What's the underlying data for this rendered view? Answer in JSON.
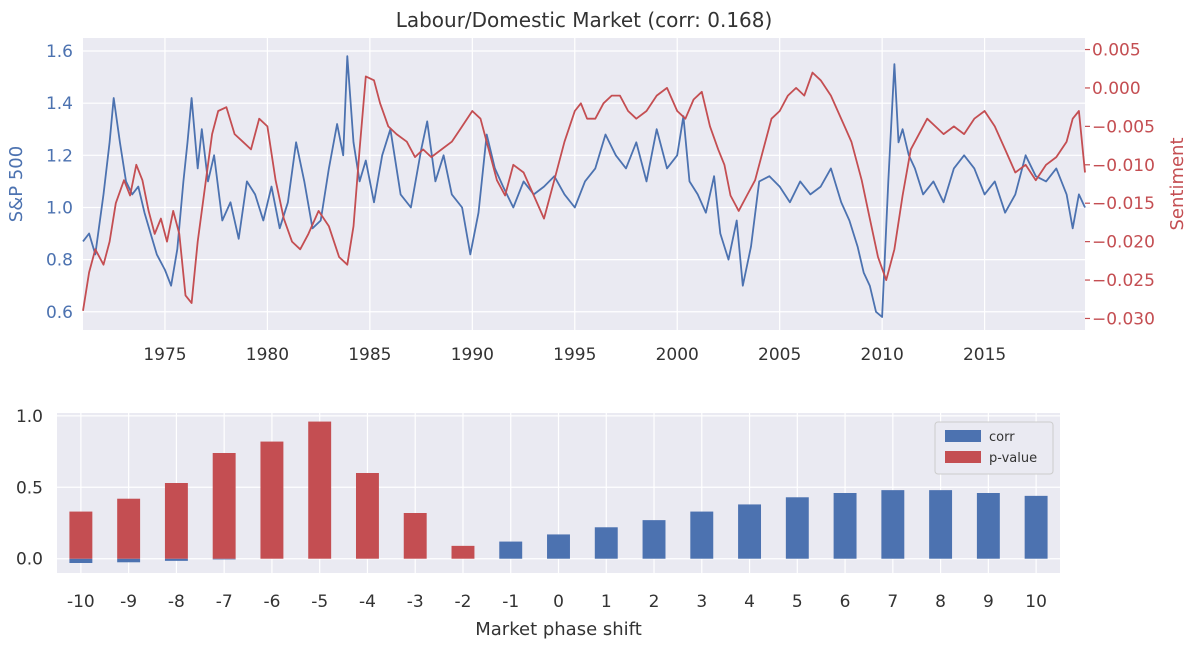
{
  "colors": {
    "background": "#ffffff",
    "panel": "#eaeaf2",
    "grid": "#ffffff",
    "blue": "#4c72b0",
    "red": "#c44e52",
    "text": "#333333"
  },
  "chart_data": [
    {
      "type": "line",
      "title": "Labour/Domestic Market (corr: 0.168)",
      "xlabel": "",
      "ylabel": "S&P 500",
      "y2label": "Sentiment",
      "x_range": [
        1971.0,
        2019.9
      ],
      "ylim": [
        0.53,
        1.65
      ],
      "y2lim": [
        -0.0315,
        0.0065
      ],
      "x_ticks": [
        1975,
        1980,
        1985,
        1990,
        1995,
        2000,
        2005,
        2010,
        2015
      ],
      "y_ticks": [
        0.6,
        0.8,
        1.0,
        1.2,
        1.4,
        1.6
      ],
      "y_tick_labels": [
        "0.6",
        "0.8",
        "1.0",
        "1.2",
        "1.4",
        "1.6"
      ],
      "y2_ticks": [
        -0.03,
        -0.025,
        -0.02,
        -0.015,
        -0.01,
        -0.005,
        0.0,
        0.005
      ],
      "y2_tick_labels": [
        "−0.030",
        "−0.025",
        "−0.020",
        "−0.015",
        "−0.010",
        "−0.005",
        "0.000",
        "0.005"
      ],
      "grid": true,
      "series": [
        {
          "axis": "left",
          "color": "#4c72b0",
          "x": [
            1971.0,
            1971.3,
            1971.6,
            1972.0,
            1972.3,
            1972.5,
            1972.8,
            1973.1,
            1973.4,
            1973.7,
            1974.0,
            1974.3,
            1974.6,
            1975.0,
            1975.3,
            1975.6,
            1975.9,
            1976.1,
            1976.3,
            1976.6,
            1976.8,
            1977.1,
            1977.4,
            1977.8,
            1978.2,
            1978.6,
            1979.0,
            1979.4,
            1979.8,
            1980.2,
            1980.6,
            1981.0,
            1981.4,
            1981.8,
            1982.2,
            1982.6,
            1983.0,
            1983.4,
            1983.7,
            1983.9,
            1984.2,
            1984.5,
            1984.8,
            1985.2,
            1985.6,
            1986.0,
            1986.5,
            1987.0,
            1987.5,
            1987.8,
            1988.2,
            1988.6,
            1989.0,
            1989.5,
            1989.9,
            1990.3,
            1990.7,
            1991.1,
            1991.5,
            1992.0,
            1992.5,
            1993.0,
            1993.5,
            1994.0,
            1994.5,
            1995.0,
            1995.5,
            1996.0,
            1996.5,
            1997.0,
            1997.5,
            1998.0,
            1998.5,
            1999.0,
            1999.5,
            2000.0,
            2000.3,
            2000.6,
            2001.0,
            2001.4,
            2001.8,
            2002.1,
            2002.5,
            2002.9,
            2003.2,
            2003.6,
            2004.0,
            2004.5,
            2005.0,
            2005.5,
            2006.0,
            2006.5,
            2007.0,
            2007.5,
            2008.0,
            2008.4,
            2008.8,
            2009.1,
            2009.4,
            2009.7,
            2010.0,
            2010.3,
            2010.6,
            2010.8,
            2011.0,
            2011.3,
            2011.6,
            2012.0,
            2012.5,
            2013.0,
            2013.5,
            2014.0,
            2014.5,
            2015.0,
            2015.5,
            2016.0,
            2016.5,
            2017.0,
            2017.5,
            2018.0,
            2018.5,
            2019.0,
            2019.3,
            2019.6,
            2019.9
          ],
          "y": [
            0.87,
            0.9,
            0.82,
            1.05,
            1.25,
            1.42,
            1.25,
            1.1,
            1.05,
            1.08,
            0.98,
            0.9,
            0.82,
            0.76,
            0.7,
            0.84,
            1.1,
            1.25,
            1.42,
            1.15,
            1.3,
            1.1,
            1.2,
            0.95,
            1.02,
            0.88,
            1.1,
            1.05,
            0.95,
            1.08,
            0.92,
            1.02,
            1.25,
            1.1,
            0.92,
            0.95,
            1.15,
            1.32,
            1.2,
            1.58,
            1.25,
            1.1,
            1.18,
            1.02,
            1.2,
            1.3,
            1.05,
            1.0,
            1.22,
            1.33,
            1.1,
            1.2,
            1.05,
            1.0,
            0.82,
            0.98,
            1.28,
            1.15,
            1.08,
            1.0,
            1.1,
            1.05,
            1.08,
            1.12,
            1.05,
            1.0,
            1.1,
            1.15,
            1.28,
            1.2,
            1.15,
            1.25,
            1.1,
            1.3,
            1.15,
            1.2,
            1.35,
            1.1,
            1.05,
            0.98,
            1.12,
            0.9,
            0.8,
            0.95,
            0.7,
            0.85,
            1.1,
            1.12,
            1.08,
            1.02,
            1.1,
            1.05,
            1.08,
            1.15,
            1.02,
            0.95,
            0.85,
            0.75,
            0.7,
            0.6,
            0.58,
            1.1,
            1.55,
            1.25,
            1.3,
            1.2,
            1.15,
            1.05,
            1.1,
            1.02,
            1.15,
            1.2,
            1.15,
            1.05,
            1.1,
            0.98,
            1.05,
            1.2,
            1.12,
            1.1,
            1.15,
            1.05,
            0.92,
            1.05,
            1.0
          ]
        },
        {
          "axis": "right",
          "color": "#c44e52",
          "x": [
            1971.0,
            1971.3,
            1971.6,
            1972.0,
            1972.3,
            1972.6,
            1973.0,
            1973.3,
            1973.6,
            1973.9,
            1974.2,
            1974.5,
            1974.8,
            1975.1,
            1975.4,
            1975.7,
            1976.0,
            1976.3,
            1976.6,
            1977.0,
            1977.3,
            1977.6,
            1978.0,
            1978.4,
            1978.8,
            1979.2,
            1979.6,
            1980.0,
            1980.4,
            1980.8,
            1981.2,
            1981.6,
            1982.0,
            1982.5,
            1983.0,
            1983.5,
            1983.9,
            1984.2,
            1984.5,
            1984.8,
            1985.2,
            1985.5,
            1985.9,
            1986.3,
            1986.8,
            1987.2,
            1987.6,
            1988.0,
            1988.5,
            1989.0,
            1989.5,
            1990.0,
            1990.4,
            1990.8,
            1991.2,
            1991.6,
            1992.0,
            1992.5,
            1993.0,
            1993.5,
            1994.0,
            1994.5,
            1995.0,
            1995.3,
            1995.6,
            1996.0,
            1996.4,
            1996.8,
            1997.2,
            1997.6,
            1998.0,
            1998.5,
            1999.0,
            1999.5,
            2000.0,
            2000.4,
            2000.8,
            2001.2,
            2001.6,
            2002.0,
            2002.3,
            2002.6,
            2003.0,
            2003.4,
            2003.8,
            2004.2,
            2004.6,
            2005.0,
            2005.4,
            2005.8,
            2006.2,
            2006.6,
            2007.0,
            2007.5,
            2008.0,
            2008.5,
            2009.0,
            2009.4,
            2009.8,
            2010.2,
            2010.6,
            2011.0,
            2011.4,
            2011.8,
            2012.2,
            2012.6,
            2013.0,
            2013.5,
            2014.0,
            2014.5,
            2015.0,
            2015.5,
            2016.0,
            2016.5,
            2017.0,
            2017.5,
            2018.0,
            2018.5,
            2019.0,
            2019.3,
            2019.6,
            2019.9
          ],
          "y": [
            -0.029,
            -0.024,
            -0.021,
            -0.023,
            -0.02,
            -0.015,
            -0.012,
            -0.014,
            -0.01,
            -0.012,
            -0.016,
            -0.019,
            -0.017,
            -0.02,
            -0.016,
            -0.019,
            -0.027,
            -0.028,
            -0.02,
            -0.012,
            -0.006,
            -0.003,
            -0.0025,
            -0.006,
            -0.007,
            -0.008,
            -0.004,
            -0.005,
            -0.012,
            -0.017,
            -0.02,
            -0.021,
            -0.019,
            -0.016,
            -0.018,
            -0.022,
            -0.023,
            -0.018,
            -0.008,
            0.0015,
            0.001,
            -0.002,
            -0.005,
            -0.006,
            -0.007,
            -0.009,
            -0.008,
            -0.009,
            -0.008,
            -0.007,
            -0.005,
            -0.003,
            -0.004,
            -0.008,
            -0.012,
            -0.014,
            -0.01,
            -0.011,
            -0.014,
            -0.017,
            -0.012,
            -0.007,
            -0.003,
            -0.002,
            -0.004,
            -0.004,
            -0.002,
            -0.001,
            -0.001,
            -0.003,
            -0.004,
            -0.003,
            -0.001,
            0.0,
            -0.003,
            -0.004,
            -0.0015,
            -0.0005,
            -0.005,
            -0.008,
            -0.01,
            -0.014,
            -0.016,
            -0.014,
            -0.012,
            -0.008,
            -0.004,
            -0.003,
            -0.001,
            0.0,
            -0.001,
            0.002,
            0.001,
            -0.001,
            -0.004,
            -0.007,
            -0.012,
            -0.017,
            -0.022,
            -0.025,
            -0.021,
            -0.014,
            -0.008,
            -0.006,
            -0.004,
            -0.005,
            -0.006,
            -0.005,
            -0.006,
            -0.004,
            -0.003,
            -0.005,
            -0.008,
            -0.011,
            -0.01,
            -0.012,
            -0.01,
            -0.009,
            -0.007,
            -0.004,
            -0.003,
            -0.011
          ]
        }
      ]
    },
    {
      "type": "bar",
      "title": "",
      "xlabel": "Market phase shift",
      "ylabel": "",
      "categories": [
        "-10",
        "-9",
        "-8",
        "-7",
        "-6",
        "-5",
        "-4",
        "-3",
        "-2",
        "-1",
        "0",
        "1",
        "2",
        "3",
        "4",
        "5",
        "6",
        "7",
        "8",
        "9",
        "10"
      ],
      "ylim": [
        -0.1,
        1.02
      ],
      "y_ticks": [
        0.0,
        0.5,
        1.0
      ],
      "y_tick_labels": [
        "0.0",
        "0.5",
        "1.0"
      ],
      "legend_position": "top-right",
      "grid": true,
      "series": [
        {
          "name": "corr",
          "color": "#4c72b0",
          "values": [
            -0.03,
            -0.025,
            -0.015,
            -0.005,
            0.0,
            0.0,
            0.0,
            0.0,
            0.0,
            0.12,
            0.17,
            0.22,
            0.27,
            0.33,
            0.38,
            0.43,
            0.46,
            0.48,
            0.48,
            0.46,
            0.44
          ]
        },
        {
          "name": "p-value",
          "color": "#c44e52",
          "values": [
            0.33,
            0.42,
            0.53,
            0.74,
            0.82,
            0.96,
            0.6,
            0.32,
            0.09,
            0.0,
            0.0,
            0.0,
            0.0,
            0.0,
            0.0,
            0.0,
            0.0,
            0.0,
            0.0,
            0.0,
            0.0
          ]
        }
      ]
    }
  ]
}
